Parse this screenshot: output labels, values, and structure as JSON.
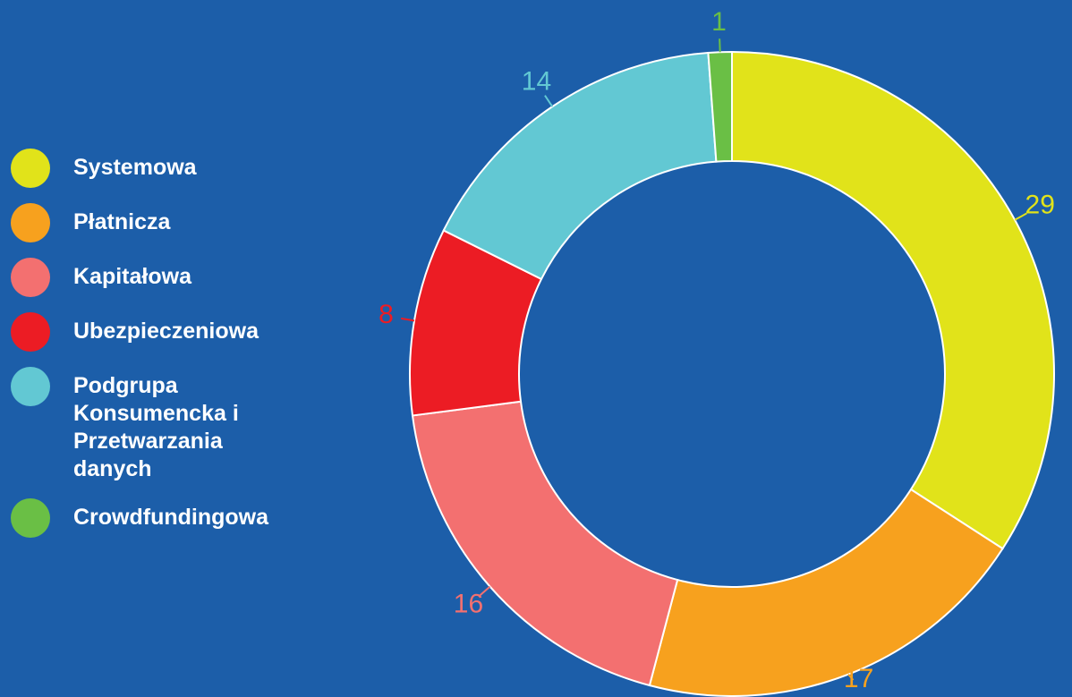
{
  "chart_data": {
    "type": "pie",
    "categories": [
      "Systemowa",
      "Płatnicza",
      "Kapitałowa",
      "Ubezpieczeniowa",
      "Podgrupa Konsumencka i Przetwarzania danych",
      "Crowdfundingowa"
    ],
    "values": [
      29,
      17,
      16,
      8,
      14,
      1
    ],
    "colors": [
      "#e1e31a",
      "#f7a11e",
      "#f37070",
      "#ec1c24",
      "#62c8d3",
      "#6abf45"
    ],
    "legend": "left"
  }
}
